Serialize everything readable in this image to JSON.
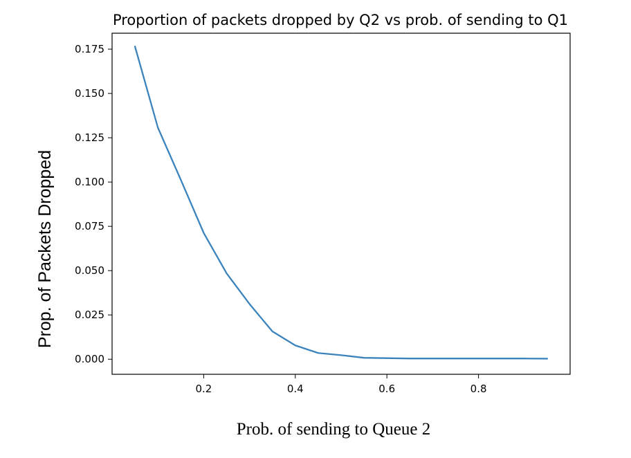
{
  "chart_data": {
    "type": "line",
    "title": "Proportion of packets dropped by Q2 vs prob. of sending to Q1",
    "xlabel": "Prob. of sending to Queue 2",
    "ylabel": "Prop. of Packets Dropped",
    "xlim": [
      0.0,
      1.0
    ],
    "ylim": [
      -0.0085,
      0.184
    ],
    "grid": false,
    "x_ticks": [
      0.2,
      0.4,
      0.6,
      0.8
    ],
    "x_tick_labels": [
      "0.2",
      "0.4",
      "0.6",
      "0.8"
    ],
    "y_ticks": [
      0.0,
      0.025,
      0.05,
      0.075,
      0.1,
      0.125,
      0.15,
      0.175
    ],
    "y_tick_labels": [
      "0.000",
      "0.025",
      "0.050",
      "0.075",
      "0.100",
      "0.125",
      "0.150",
      "0.175"
    ],
    "line_color": "#3a83bd",
    "series": [
      {
        "x": [
          0.05,
          0.1,
          0.15,
          0.2,
          0.25,
          0.3,
          0.35,
          0.4,
          0.45,
          0.5,
          0.55,
          0.6,
          0.65,
          0.7,
          0.75,
          0.8,
          0.85,
          0.9,
          0.95
        ],
        "y": [
          0.1765,
          0.1307,
          0.1013,
          0.0713,
          0.0485,
          0.0312,
          0.0157,
          0.0078,
          0.0035,
          0.0023,
          0.0008,
          0.0006,
          0.0004,
          0.0004,
          0.0004,
          0.0004,
          0.0004,
          0.0004,
          0.0003
        ]
      }
    ]
  }
}
